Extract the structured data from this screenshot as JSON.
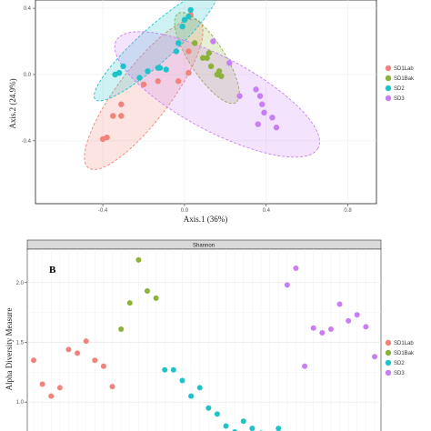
{
  "colors": {
    "SD1Lab": "#F2837B",
    "SD1Bak": "#8CB23A",
    "SD2": "#20C2C9",
    "SD3": "#C97EF5"
  },
  "legend": [
    "SD1Lab",
    "SD1Bak",
    "SD2",
    "SD3"
  ],
  "chart_data": [
    {
      "type": "scatter",
      "xlabel": "Axis.1 (36%)",
      "ylabel": "Axis.2 (24.9%)",
      "x_ticks": [
        "-0.4",
        "0.0",
        "0.4",
        "0.8"
      ],
      "y_ticks": [
        "0.4",
        "0.0",
        "-0.4"
      ],
      "xlim": [
        -0.73,
        0.94
      ],
      "ylim": [
        -0.78,
        0.45
      ],
      "grid": true,
      "legend_position": "right",
      "series": [
        {
          "name": "SD1Lab",
          "points": [
            [
              -0.4,
              -0.39
            ],
            [
              -0.38,
              -0.38
            ],
            [
              -0.35,
              -0.25
            ],
            [
              -0.31,
              -0.18
            ],
            [
              -0.31,
              -0.25
            ],
            [
              -0.2,
              -0.06
            ],
            [
              -0.13,
              -0.04
            ],
            [
              -0.03,
              -0.04
            ],
            [
              0.02,
              0.14
            ],
            [
              0.02,
              0.01
            ],
            [
              0.03,
              0.36
            ]
          ]
        },
        {
          "name": "SD1Bak",
          "points": [
            [
              0.05,
              0.19
            ],
            [
              0.09,
              0.1
            ],
            [
              0.11,
              0.1
            ],
            [
              0.12,
              0.13
            ],
            [
              0.13,
              0.05
            ],
            [
              0.16,
              0.0
            ],
            [
              0.18,
              -0.01
            ],
            [
              0.17,
              0.02
            ]
          ]
        },
        {
          "name": "SD2",
          "points": [
            [
              -0.34,
              0.0
            ],
            [
              -0.32,
              0.01
            ],
            [
              -0.3,
              0.05
            ],
            [
              -0.22,
              -0.02
            ],
            [
              -0.18,
              0.02
            ],
            [
              -0.13,
              0.04
            ],
            [
              -0.12,
              0.04
            ],
            [
              -0.09,
              0.03
            ],
            [
              -0.04,
              0.14
            ],
            [
              -0.03,
              0.19
            ],
            [
              -0.01,
              0.29
            ],
            [
              0.03,
              0.39
            ],
            [
              0.0,
              0.33
            ],
            [
              0.02,
              0.35
            ]
          ]
        },
        {
          "name": "SD3",
          "points": [
            [
              0.14,
              0.2
            ],
            [
              0.22,
              0.07
            ],
            [
              0.27,
              -0.13
            ],
            [
              0.35,
              -0.09
            ],
            [
              0.37,
              -0.13
            ],
            [
              0.38,
              -0.18
            ],
            [
              0.36,
              -0.3
            ],
            [
              0.39,
              -0.23
            ],
            [
              0.43,
              -0.26
            ],
            [
              0.45,
              -0.32
            ]
          ]
        }
      ],
      "ellipses": [
        {
          "name": "SD1Lab",
          "center": [
            -0.2,
            -0.12
          ],
          "rx": 0.45,
          "ry": 0.13,
          "angle": -53
        },
        {
          "name": "SD1Bak",
          "center": [
            0.11,
            0.1
          ],
          "rx": 0.26,
          "ry": 0.085,
          "angle": 57
        },
        {
          "name": "SD2",
          "center": [
            -0.14,
            0.18
          ],
          "rx": 0.4,
          "ry": 0.085,
          "angle": -42
        },
        {
          "name": "SD3",
          "center": [
            0.16,
            -0.12
          ],
          "rx": 0.56,
          "ry": 0.18,
          "angle": 28
        }
      ]
    },
    {
      "type": "scatter",
      "panel_label": "B",
      "strip_title": "Shannon",
      "ylabel": "Alpha Diversity Measure",
      "y_ticks": [
        "2.0",
        "1.5",
        "1.0"
      ],
      "ylim": [
        0.72,
        2.28
      ],
      "grid": true,
      "series": [
        {
          "name": "SD1Lab",
          "values": [
            1.35,
            1.15,
            1.05,
            1.12,
            1.44,
            1.41,
            1.51,
            1.35,
            1.3,
            1.13
          ]
        },
        {
          "name": "SD1Bak",
          "values": [
            1.61,
            1.83,
            2.19,
            1.93,
            1.87
          ]
        },
        {
          "name": "SD2",
          "values": [
            1.27,
            1.27,
            1.18,
            1.05,
            1.12,
            0.95,
            0.9,
            0.8,
            0.75,
            0.84,
            0.78,
            0.74,
            0.73,
            0.78
          ]
        },
        {
          "name": "SD3",
          "values": [
            1.98,
            2.12,
            1.3,
            1.62,
            1.58,
            1.61,
            1.82,
            1.68,
            1.73,
            1.63,
            1.38
          ]
        }
      ]
    }
  ]
}
